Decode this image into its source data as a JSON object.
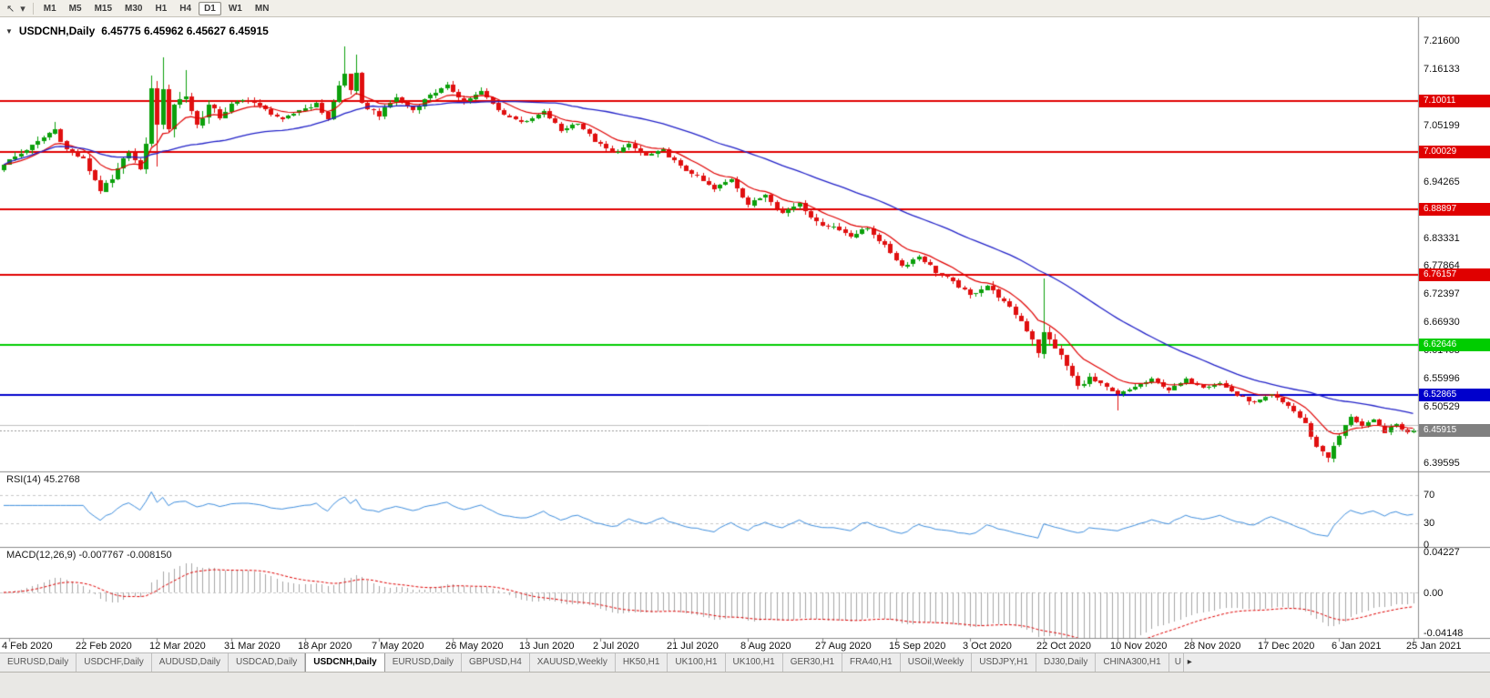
{
  "toolbar": {
    "icons": [
      {
        "name": "cursor-icon",
        "glyph": "↖"
      },
      {
        "name": "dropdown-arrow-icon",
        "glyph": "▾"
      }
    ],
    "timeframes": [
      "M1",
      "M5",
      "M15",
      "M30",
      "H1",
      "H4",
      "D1",
      "W1",
      "MN"
    ],
    "active_timeframe": "D1"
  },
  "chart_data": {
    "type": "candlestick",
    "symbol": "USDCNH",
    "period": "Daily",
    "title": {
      "symbol_period": "USDCNH,Daily",
      "ohlc": "6.45775 6.45962 6.45627 6.45915"
    },
    "colors": {
      "up": "#0ca00c",
      "down": "#e01010",
      "ma_fast": "#e00000",
      "ma_slow": "#2121c8",
      "current_price_badge": "#808080",
      "axis_text": "#111111",
      "separator": "#8c8c8c",
      "level_dash": "#c8c8c8"
    },
    "price_axis": {
      "min": 6.38,
      "max": 7.262,
      "tick_start": 6.39595,
      "tick_step": 0.05467,
      "tick_count": 16,
      "decimals": 5
    },
    "bars": 249,
    "last_close": 6.45915,
    "close_anchors": [
      [
        0,
        6.978
      ],
      [
        3,
        6.998
      ],
      [
        6,
        7.02
      ],
      [
        9,
        7.045
      ],
      [
        11,
        7.005
      ],
      [
        14,
        6.986
      ],
      [
        17,
        6.926
      ],
      [
        19,
        6.946
      ],
      [
        22,
        7.004
      ],
      [
        24,
        6.962
      ],
      [
        25,
        7.02
      ],
      [
        26,
        7.12
      ],
      [
        27,
        7.06
      ],
      [
        28,
        7.115
      ],
      [
        29,
        7.05
      ],
      [
        30,
        7.095
      ],
      [
        32,
        7.11
      ],
      [
        34,
        7.052
      ],
      [
        36,
        7.09
      ],
      [
        38,
        7.068
      ],
      [
        40,
        7.092
      ],
      [
        43,
        7.103
      ],
      [
        46,
        7.082
      ],
      [
        49,
        7.062
      ],
      [
        52,
        7.082
      ],
      [
        55,
        7.094
      ],
      [
        57,
        7.064
      ],
      [
        59,
        7.128
      ],
      [
        60,
        7.152
      ],
      [
        61,
        7.122
      ],
      [
        62,
        7.15
      ],
      [
        63,
        7.092
      ],
      [
        66,
        7.072
      ],
      [
        69,
        7.108
      ],
      [
        72,
        7.082
      ],
      [
        75,
        7.112
      ],
      [
        78,
        7.128
      ],
      [
        81,
        7.098
      ],
      [
        84,
        7.118
      ],
      [
        88,
        7.072
      ],
      [
        92,
        7.058
      ],
      [
        95,
        7.078
      ],
      [
        98,
        7.042
      ],
      [
        101,
        7.058
      ],
      [
        104,
        7.022
      ],
      [
        107,
        6.998
      ],
      [
        110,
        7.014
      ],
      [
        113,
        6.992
      ],
      [
        116,
        7.004
      ],
      [
        119,
        6.972
      ],
      [
        122,
        6.952
      ],
      [
        125,
        6.928
      ],
      [
        128,
        6.948
      ],
      [
        131,
        6.898
      ],
      [
        134,
        6.918
      ],
      [
        137,
        6.882
      ],
      [
        140,
        6.902
      ],
      [
        143,
        6.862
      ],
      [
        146,
        6.856
      ],
      [
        149,
        6.838
      ],
      [
        152,
        6.852
      ],
      [
        155,
        6.818
      ],
      [
        158,
        6.778
      ],
      [
        161,
        6.798
      ],
      [
        164,
        6.768
      ],
      [
        167,
        6.748
      ],
      [
        170,
        6.722
      ],
      [
        173,
        6.742
      ],
      [
        176,
        6.708
      ],
      [
        179,
        6.672
      ],
      [
        181,
        6.638
      ],
      [
        182,
        6.612
      ],
      [
        183,
        6.648
      ],
      [
        185,
        6.622
      ],
      [
        187,
        6.585
      ],
      [
        189,
        6.545
      ],
      [
        191,
        6.562
      ],
      [
        193,
        6.548
      ],
      [
        196,
        6.528
      ],
      [
        199,
        6.545
      ],
      [
        202,
        6.558
      ],
      [
        205,
        6.538
      ],
      [
        208,
        6.558
      ],
      [
        211,
        6.545
      ],
      [
        214,
        6.552
      ],
      [
        217,
        6.528
      ],
      [
        220,
        6.512
      ],
      [
        223,
        6.528
      ],
      [
        226,
        6.508
      ],
      [
        229,
        6.472
      ],
      [
        231,
        6.428
      ],
      [
        233,
        6.408
      ],
      [
        235,
        6.448
      ],
      [
        237,
        6.488
      ],
      [
        239,
        6.468
      ],
      [
        241,
        6.478
      ],
      [
        243,
        6.458
      ],
      [
        245,
        6.472
      ],
      [
        247,
        6.455
      ],
      [
        248,
        6.459
      ]
    ],
    "volatility_anchors": [
      [
        0,
        0.009
      ],
      [
        14,
        0.01
      ],
      [
        24,
        0.014
      ],
      [
        27,
        0.024
      ],
      [
        34,
        0.016
      ],
      [
        40,
        0.009
      ],
      [
        56,
        0.008
      ],
      [
        60,
        0.015
      ],
      [
        64,
        0.009
      ],
      [
        80,
        0.008
      ],
      [
        100,
        0.007
      ],
      [
        130,
        0.008
      ],
      [
        160,
        0.008
      ],
      [
        178,
        0.009
      ],
      [
        183,
        0.016
      ],
      [
        188,
        0.01
      ],
      [
        200,
        0.006
      ],
      [
        212,
        0.006
      ],
      [
        225,
        0.007
      ],
      [
        232,
        0.01
      ],
      [
        240,
        0.007
      ],
      [
        248,
        0.005
      ]
    ],
    "spikes": [
      {
        "bar": 9,
        "high": 7.058
      },
      {
        "bar": 26,
        "high": 7.148
      },
      {
        "bar": 27,
        "low": 6.972
      },
      {
        "bar": 28,
        "high": 7.185
      },
      {
        "bar": 32,
        "high": 7.16
      },
      {
        "bar": 60,
        "high": 7.205
      },
      {
        "bar": 62,
        "high": 7.19
      },
      {
        "bar": 183,
        "high": 6.755,
        "low": 6.6
      },
      {
        "bar": 196,
        "low": 6.499
      },
      {
        "bar": 233,
        "low": 6.398
      }
    ],
    "hlines": [
      {
        "value": 7.10011,
        "color": "#e00000",
        "width": 2,
        "label": "7.10011",
        "text_color": "#ffffff"
      },
      {
        "value": 7.00029,
        "color": "#e00000",
        "width": 2,
        "label": "7.00029",
        "text_color": "#ffffff"
      },
      {
        "value": 6.88897,
        "color": "#e00000",
        "width": 2,
        "label": "6.88897",
        "text_color": "#ffffff"
      },
      {
        "value": 6.76157,
        "color": "#e00000",
        "width": 2,
        "label": "6.76157",
        "text_color": "#ffffff"
      },
      {
        "value": 6.62646,
        "color": "#00cc00",
        "width": 2,
        "label": "6.62646",
        "text_color": "#ffffff"
      },
      {
        "value": 6.52865,
        "color": "#0000cc",
        "width": 2,
        "label": "6.52865",
        "text_color": "#ffffff"
      },
      {
        "value": 6.47,
        "color": "#c0c0c0",
        "width": 1
      }
    ],
    "current_price": {
      "value": 6.45915,
      "label": "6.45915"
    },
    "moving_averages": {
      "fast": {
        "type": "ema",
        "period": 10,
        "color": "#e00000"
      },
      "slow": {
        "type": "sma",
        "period": 40,
        "color": "#2121c8"
      }
    },
    "rsi": {
      "label": "RSI(14) 45.2768",
      "period": 14,
      "color": "#3e8ede",
      "levels": [
        70,
        30
      ],
      "axis_labels": [
        {
          "value": 70,
          "text": "70"
        },
        {
          "value": 30,
          "text": "30"
        },
        {
          "value": 0,
          "text": "0"
        }
      ]
    },
    "macd": {
      "label": "MACD(12,26,9) -0.007767 -0.008150",
      "fast": 12,
      "slow": 26,
      "signal": 9,
      "hist_color": "#a6a6a6",
      "signal_color": "#e00000",
      "axis_labels": [
        {
          "value": 0.04227,
          "text": "0.04227"
        },
        {
          "value": 0,
          "text": "0.00"
        },
        {
          "value": -0.04148,
          "text": "-0.04148"
        }
      ]
    },
    "time_axis": {
      "labels": [
        {
          "bar": 1,
          "text": "4 Feb 2020"
        },
        {
          "bar": 14,
          "text": "22 Feb 2020"
        },
        {
          "bar": 27,
          "text": "12 Mar 2020"
        },
        {
          "bar": 40,
          "text": "31 Mar 2020"
        },
        {
          "bar": 53,
          "text": "18 Apr 2020"
        },
        {
          "bar": 66,
          "text": "7 May 2020"
        },
        {
          "bar": 79,
          "text": "26 May 2020"
        },
        {
          "bar": 92,
          "text": "13 Jun 2020"
        },
        {
          "bar": 105,
          "text": "2 Jul 2020"
        },
        {
          "bar": 118,
          "text": "21 Jul 2020"
        },
        {
          "bar": 131,
          "text": "8 Aug 2020"
        },
        {
          "bar": 144,
          "text": "27 Aug 2020"
        },
        {
          "bar": 157,
          "text": "15 Sep 2020"
        },
        {
          "bar": 170,
          "text": "3 Oct 2020"
        },
        {
          "bar": 183,
          "text": "22 Oct 2020"
        },
        {
          "bar": 196,
          "text": "10 Nov 2020"
        },
        {
          "bar": 209,
          "text": "28 Nov 2020"
        },
        {
          "bar": 222,
          "text": "17 Dec 2020"
        },
        {
          "bar": 235,
          "text": "6 Jan 2021"
        },
        {
          "bar": 248,
          "text": "25 Jan 2021"
        }
      ]
    }
  },
  "tabs": {
    "items": [
      "EURUSD,Daily",
      "USDCHF,Daily",
      "AUDUSD,Daily",
      "USDCAD,Daily",
      "USDCNH,Daily",
      "EURUSD,Daily",
      "GBPUSD,H4",
      "XAUUSD,Weekly",
      "HK50,H1",
      "UK100,H1",
      "UK100,H1",
      "GER30,H1",
      "FRA40,H1",
      "USOil,Weekly",
      "USDJPY,H1",
      "DJ30,Daily",
      "CHINA300,H1"
    ],
    "active_index": 4,
    "overflow_label": "U",
    "scroll_icon": "▸"
  }
}
